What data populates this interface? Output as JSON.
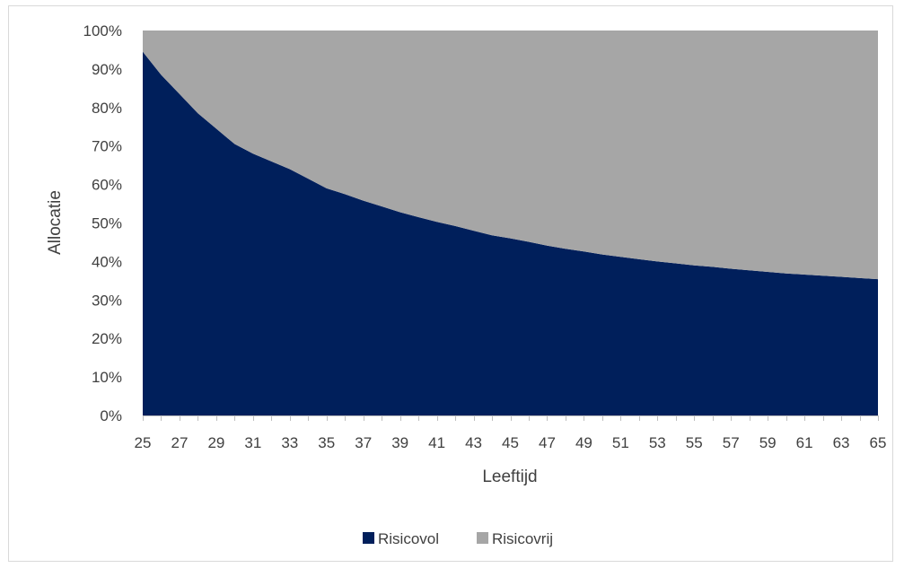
{
  "chart_data": {
    "type": "area",
    "stacked": true,
    "percent_stacked": true,
    "xlabel": "Leeftijd",
    "ylabel": "Allocatie",
    "x": [
      25,
      26,
      27,
      28,
      29,
      30,
      31,
      32,
      33,
      34,
      35,
      36,
      37,
      38,
      39,
      40,
      41,
      42,
      43,
      44,
      45,
      46,
      47,
      48,
      49,
      50,
      51,
      52,
      53,
      54,
      55,
      56,
      57,
      58,
      59,
      60,
      61,
      62,
      63,
      64,
      65
    ],
    "x_tick_labels": [
      "25",
      "27",
      "29",
      "31",
      "33",
      "35",
      "37",
      "39",
      "41",
      "43",
      "45",
      "47",
      "49",
      "51",
      "53",
      "55",
      "57",
      "59",
      "61",
      "63",
      "65"
    ],
    "y_tick_labels": [
      "0%",
      "10%",
      "20%",
      "30%",
      "40%",
      "50%",
      "60%",
      "70%",
      "80%",
      "90%",
      "100%"
    ],
    "ylim": [
      0,
      100
    ],
    "series": [
      {
        "name": "Risicovol",
        "color": "#001f5b",
        "values": [
          94.5,
          88.5,
          83.5,
          78.5,
          74.5,
          70.5,
          68.0,
          66.0,
          64.0,
          61.5,
          59.0,
          57.5,
          55.8,
          54.3,
          52.8,
          51.5,
          50.3,
          49.2,
          48.0,
          46.8,
          46.0,
          45.1,
          44.1,
          43.3,
          42.6,
          41.8,
          41.2,
          40.6,
          40.0,
          39.5,
          39.0,
          38.6,
          38.1,
          37.7,
          37.3,
          36.9,
          36.6,
          36.3,
          36.0,
          35.7,
          35.4
        ]
      },
      {
        "name": "Risicovrij",
        "color": "#a6a6a6",
        "values": [
          5.5,
          11.5,
          16.5,
          21.5,
          25.5,
          29.5,
          32.0,
          34.0,
          36.0,
          38.5,
          41.0,
          42.5,
          44.2,
          45.7,
          47.2,
          48.5,
          49.7,
          50.8,
          52.0,
          53.2,
          54.0,
          54.9,
          55.9,
          56.7,
          57.4,
          58.2,
          58.8,
          59.4,
          60.0,
          60.5,
          61.0,
          61.4,
          61.9,
          62.3,
          62.7,
          63.1,
          63.4,
          63.7,
          64.0,
          64.3,
          64.6
        ]
      }
    ],
    "legend_position": "bottom",
    "grid": false
  }
}
